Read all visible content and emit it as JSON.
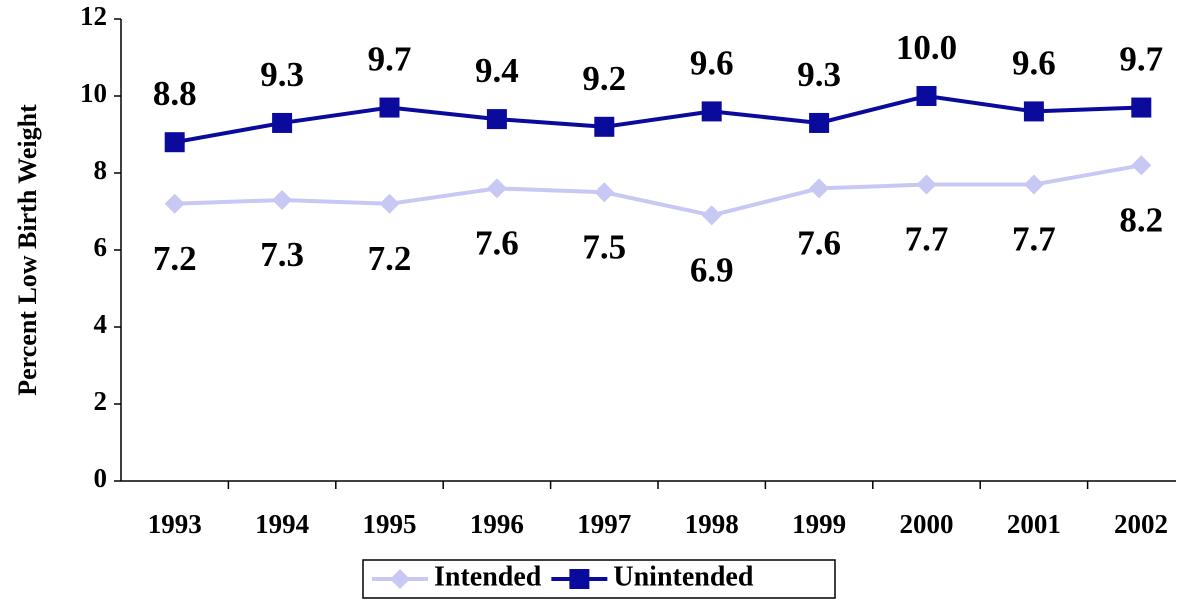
{
  "chart_data": {
    "type": "line",
    "y_label": "Percent Low Birth Weight",
    "categories": [
      "1993",
      "1994",
      "1995",
      "1996",
      "1997",
      "1998",
      "1999",
      "2000",
      "2001",
      "2002"
    ],
    "series": [
      {
        "name": "Intended",
        "color": "#c8c8f4",
        "marker": "diamond",
        "values": [
          7.2,
          7.3,
          7.2,
          7.6,
          7.5,
          6.9,
          7.6,
          7.7,
          7.7,
          8.2
        ],
        "value_labels": [
          "7.2",
          "7.3",
          "7.2",
          "7.6",
          "7.5",
          "6.9",
          "7.6",
          "7.7",
          "7.7",
          "8.2"
        ]
      },
      {
        "name": "Unintended",
        "color": "#0a0a9c",
        "marker": "square",
        "values": [
          8.8,
          9.3,
          9.7,
          9.4,
          9.2,
          9.6,
          9.3,
          10.0,
          9.6,
          9.7
        ],
        "value_labels": [
          "8.8",
          "9.3",
          "9.7",
          "9.4",
          "9.2",
          "9.6",
          "9.3",
          "10.0",
          "9.6",
          "9.7"
        ]
      }
    ],
    "ylim": [
      0,
      12
    ],
    "yticks": [
      0,
      2,
      4,
      6,
      8,
      10,
      12
    ],
    "legend": "bottom"
  }
}
